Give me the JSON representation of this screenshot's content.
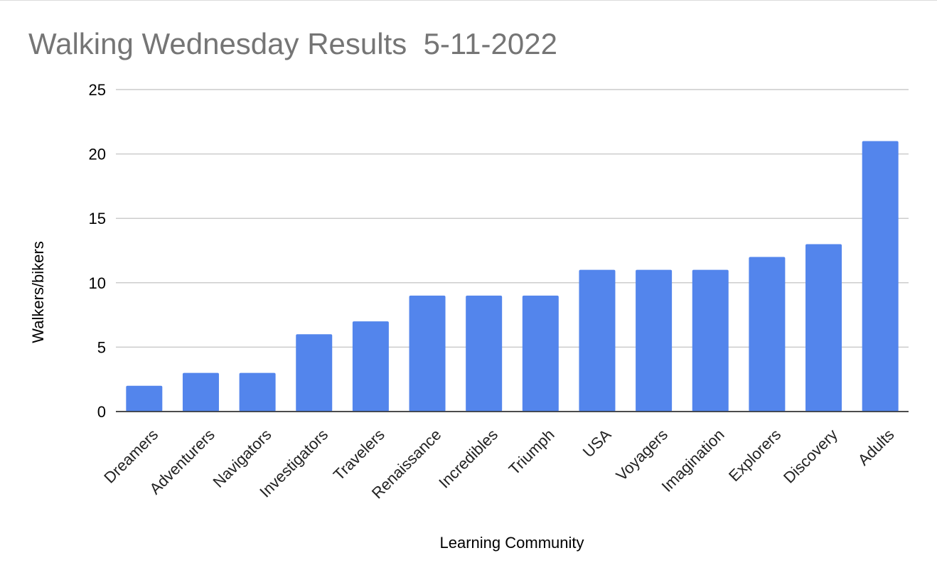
{
  "chart_data": {
    "type": "bar",
    "title": "Walking Wednesday Results  5-11-2022",
    "xlabel": "Learning Community",
    "ylabel": "Walkers/bikers",
    "ylim": [
      0,
      25
    ],
    "yticks": [
      0,
      5,
      10,
      15,
      20,
      25
    ],
    "grid": true,
    "legend": "none",
    "bar_color": "#5385ec",
    "categories": [
      "Dreamers",
      "Adventurers",
      "Navigators",
      "Investigators",
      "Travelers",
      "Renaissance",
      "Incredibles",
      "Triumph",
      "USA",
      "Voyagers",
      "Imagination",
      "Explorers",
      "Discovery",
      "Adults"
    ],
    "values": [
      2,
      3,
      3,
      6,
      7,
      9,
      9,
      9,
      11,
      11,
      11,
      12,
      13,
      21
    ]
  }
}
